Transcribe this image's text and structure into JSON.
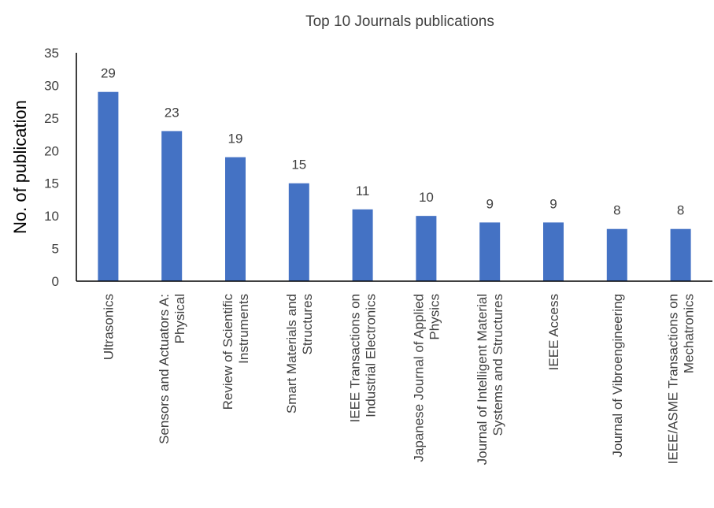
{
  "chart_data": {
    "type": "bar",
    "title": "Top 10 Journals publications",
    "xlabel": "",
    "ylabel": "No. of publication",
    "ylim": [
      0,
      35
    ],
    "yticks": [
      0,
      5,
      10,
      15,
      20,
      25,
      30,
      35
    ],
    "grid": false,
    "bar_color": "#4472C4",
    "categories": [
      [
        "Ultrasonics"
      ],
      [
        "Sensors and Actuators A:",
        "Physical"
      ],
      [
        "Review of Scientific",
        "Instruments"
      ],
      [
        "Smart Materials and",
        "Structures"
      ],
      [
        "IEEE Transactions on",
        "Industrial Electronics"
      ],
      [
        "Japanese Journal of Applied",
        "Physics"
      ],
      [
        "Journal of Intelligent Material",
        "Systems and Structures"
      ],
      [
        "IEEE Access"
      ],
      [
        "Journal of Vibroengineering"
      ],
      [
        "IEEE/ASME Transactions on",
        "Mechatronics"
      ]
    ],
    "values": [
      29,
      23,
      19,
      15,
      11,
      10,
      9,
      9,
      8,
      8
    ]
  }
}
